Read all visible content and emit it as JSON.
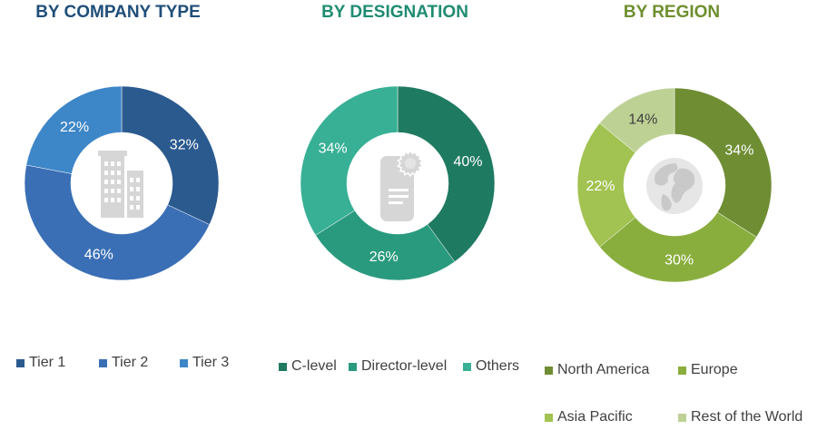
{
  "titles": {
    "company_type": "BY COMPANY TYPE",
    "designation": "BY DESIGNATION",
    "region": "BY REGION"
  },
  "title_colors": {
    "company_type": "#1F4E79",
    "designation": "#1E8C72",
    "region": "#6E8F2E"
  },
  "chart_data": [
    {
      "type": "pie",
      "title": "BY COMPANY TYPE",
      "donut": true,
      "center_icon": "buildings-icon",
      "slices": [
        {
          "name": "Tier 1",
          "value": 32,
          "label": "32%",
          "color": "#2B5A8F"
        },
        {
          "name": "Tier 2",
          "value": 46,
          "label": "46%",
          "color": "#3A6FB5"
        },
        {
          "name": "Tier 3",
          "value": 22,
          "label": "22%",
          "color": "#3D86C8"
        }
      ],
      "legend": "bottom"
    },
    {
      "type": "pie",
      "title": "BY DESIGNATION",
      "donut": true,
      "center_icon": "document-badge-icon",
      "slices": [
        {
          "name": "C-level",
          "value": 40,
          "label": "40%",
          "color": "#1F7A62"
        },
        {
          "name": "Director-level",
          "value": 26,
          "label": "26%",
          "color": "#2A9A7E"
        },
        {
          "name": "Others",
          "value": 34,
          "label": "34%",
          "color": "#37B095"
        }
      ],
      "legend": "bottom"
    },
    {
      "type": "pie",
      "title": "BY REGION",
      "donut": true,
      "center_icon": "globe-icon",
      "slices": [
        {
          "name": "North America",
          "value": 34,
          "label": "34%",
          "color": "#6F8E34"
        },
        {
          "name": "Europe",
          "value": 30,
          "label": "30%",
          "color": "#8AAE3E"
        },
        {
          "name": "Asia Pacific",
          "value": 22,
          "label": "22%",
          "color": "#A2C251"
        },
        {
          "name": "Rest of the World",
          "value": 14,
          "label": "14%",
          "color": "#BDD194"
        }
      ],
      "legend": "bottom"
    }
  ]
}
